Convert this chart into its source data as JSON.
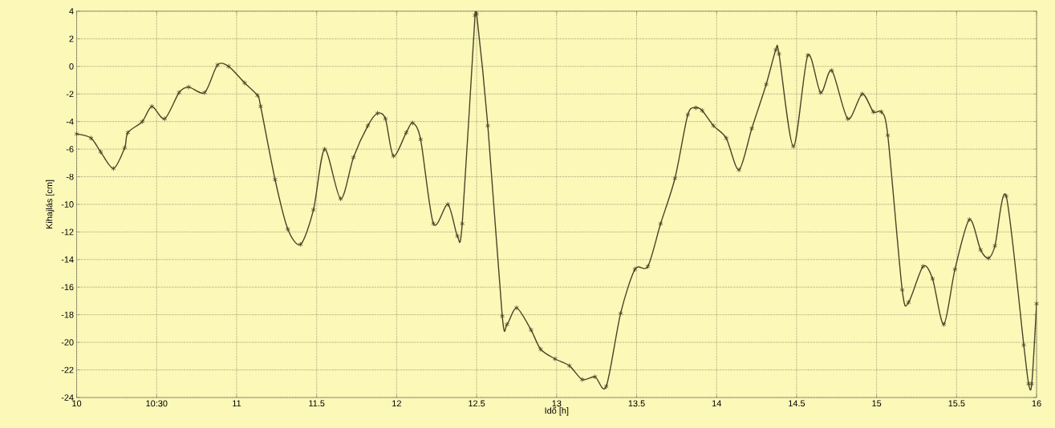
{
  "chart_data": {
    "type": "line",
    "xlabel": "Idő [h]",
    "ylabel": "Kihajlás [cm]",
    "x": [
      10.0,
      10.09,
      10.15,
      10.23,
      10.3,
      10.32,
      10.41,
      10.47,
      10.55,
      10.64,
      10.7,
      10.8,
      10.88,
      10.95,
      11.05,
      11.13,
      11.15,
      11.24,
      11.32,
      11.4,
      11.48,
      11.55,
      11.65,
      11.73,
      11.82,
      11.88,
      11.93,
      11.98,
      12.06,
      12.1,
      12.15,
      12.23,
      12.32,
      12.38,
      12.41,
      12.49,
      12.5,
      12.57,
      12.66,
      12.69,
      12.75,
      12.84,
      12.9,
      12.99,
      13.08,
      13.16,
      13.24,
      13.31,
      13.4,
      13.49,
      13.57,
      13.65,
      13.74,
      13.82,
      13.87,
      13.91,
      13.98,
      14.06,
      14.14,
      14.22,
      14.31,
      14.37,
      14.39,
      14.48,
      14.57,
      14.65,
      14.72,
      14.82,
      14.91,
      14.98,
      15.03,
      15.07,
      15.16,
      15.2,
      15.29,
      15.35,
      15.42,
      15.49,
      15.58,
      15.65,
      15.7,
      15.74,
      15.81,
      15.92,
      15.95,
      15.97,
      16.0
    ],
    "values": [
      -4.9,
      -5.2,
      -6.2,
      -7.4,
      -5.9,
      -4.8,
      -4.0,
      -2.9,
      -3.8,
      -1.9,
      -1.5,
      -1.9,
      0.1,
      0.0,
      -1.2,
      -2.1,
      -2.9,
      -8.2,
      -11.8,
      -12.9,
      -10.4,
      -6.0,
      -9.6,
      -6.6,
      -4.3,
      -3.4,
      -3.8,
      -6.5,
      -4.8,
      -4.1,
      -5.3,
      -11.4,
      -10.0,
      -12.3,
      -11.4,
      3.7,
      3.8,
      -4.3,
      -18.1,
      -18.7,
      -17.5,
      -19.1,
      -20.5,
      -21.2,
      -21.7,
      -22.7,
      -22.5,
      -23.2,
      -17.9,
      -14.7,
      -14.5,
      -11.4,
      -8.1,
      -3.5,
      -3.0,
      -3.2,
      -4.3,
      -5.2,
      -7.5,
      -4.5,
      -1.3,
      1.2,
      0.9,
      -5.8,
      0.8,
      -1.9,
      -0.3,
      -3.8,
      -2.0,
      -3.3,
      -3.3,
      -5.0,
      -16.2,
      -17.1,
      -14.5,
      -15.4,
      -18.7,
      -14.7,
      -11.1,
      -13.3,
      -13.9,
      -13.0,
      -9.4,
      -20.2,
      -23.0,
      -23.0,
      -17.2
    ],
    "color": "#4a4326",
    "marker": "cross",
    "line_style": "solid",
    "grid": true,
    "xlim": [
      10,
      16
    ],
    "ylim": [
      -24,
      4
    ],
    "xticks": [
      10,
      {
        "value": 10.5,
        "label": "10:30"
      },
      11,
      11.5,
      12,
      12.5,
      13,
      13.5,
      14,
      14.5,
      15,
      15.5,
      16
    ],
    "yticks": [
      -24,
      -22,
      -20,
      -18,
      -16,
      -14,
      -12,
      -10,
      -8,
      -6,
      -4,
      -2,
      0,
      2,
      4
    ]
  }
}
